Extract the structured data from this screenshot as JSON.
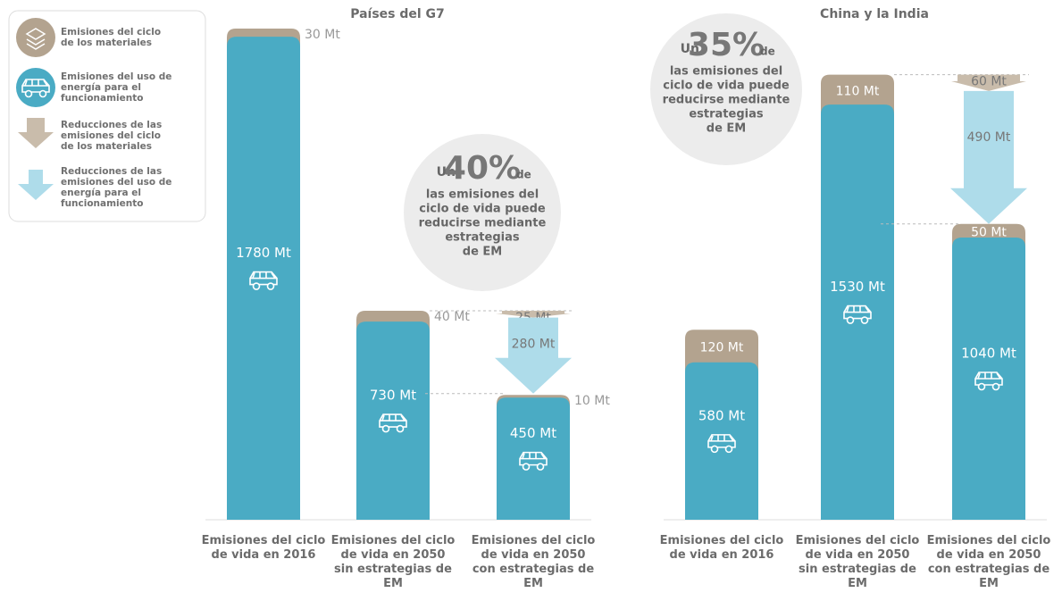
{
  "legend": [
    {
      "name": "Emisiones del ciclo de los materiales",
      "color": "#b3a38f"
    },
    {
      "name": "Emisiones del uso de energía para el funcionamiento",
      "color": "#4aabc4"
    },
    {
      "name": "Reducciones de las emisiones del ciclo de los materiales",
      "color": "#c9bcab"
    },
    {
      "name": "Reducciones de las emisiones del uso de energía para el funcionamiento",
      "color": "#aedcea"
    }
  ],
  "chart_data": [
    {
      "type": "bar",
      "title": "Países del G7",
      "categories": [
        "Emisiones del ciclo de vida en 2016",
        "Emisiones del ciclo de vida en 2050 sin estrategias de EM",
        "Emisiones del ciclo de vida en 2050 con estrategias de EM"
      ],
      "series": [
        {
          "color": "#b3a38f",
          "values": [
            30,
            40,
            10
          ],
          "value_labels": [
            "30 Mt",
            "40 Mt",
            "10 Mt"
          ],
          "label_position": "right"
        },
        {
          "color": "#4aabc4",
          "values": [
            1780,
            730,
            450
          ],
          "value_labels": [
            "1780 Mt",
            "730 Mt",
            "450 Mt"
          ]
        }
      ],
      "reductions": [
        {
          "color": "#c9bcab",
          "value": 25,
          "value_label": "25 Mt"
        },
        {
          "color": "#aedcea",
          "value": 280,
          "value_label": "280 Mt"
        }
      ],
      "annotation": {
        "prefix": "Un",
        "big": "40%",
        "suffix": "de",
        "lines": [
          "las emisiones del",
          "ciclo de vida puede",
          "reducirse mediante",
          "estrategias",
          "de EM"
        ]
      }
    },
    {
      "type": "bar",
      "title": "China y la India",
      "categories": [
        "Emisiones del ciclo de vida en 2016",
        "Emisiones del ciclo de vida en 2050 sin estrategias de EM",
        "Emisiones del ciclo de vida en 2050 con estrategias de EM"
      ],
      "series": [
        {
          "color": "#b3a38f",
          "values": [
            120,
            110,
            50
          ],
          "value_labels": [
            "120 Mt",
            "110 Mt",
            "50 Mt"
          ],
          "label_position": "inside"
        },
        {
          "color": "#4aabc4",
          "values": [
            580,
            1530,
            1040
          ],
          "value_labels": [
            "580 Mt",
            "1530 Mt",
            "1040 Mt"
          ]
        }
      ],
      "reductions": [
        {
          "color": "#c9bcab",
          "value": 60,
          "value_label": "60 Mt"
        },
        {
          "color": "#aedcea",
          "value": 490,
          "value_label": "490 Mt"
        }
      ],
      "annotation": {
        "prefix": "Un",
        "big": "35%",
        "suffix": "de",
        "lines": [
          "las emisiones del",
          "ciclo de vida puede",
          "reducirse mediante",
          "estrategias",
          "de EM"
        ]
      }
    }
  ]
}
